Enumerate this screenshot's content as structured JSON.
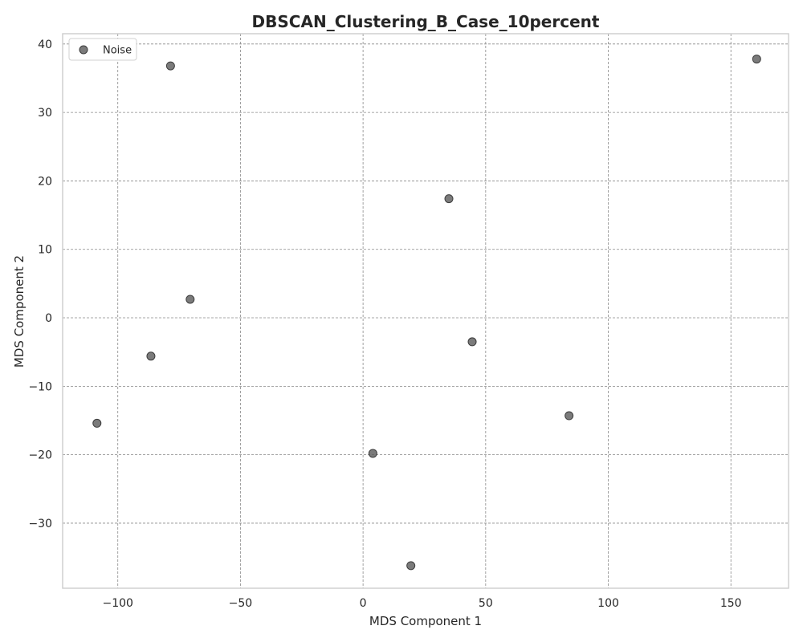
{
  "chart_data": {
    "type": "scatter",
    "title": "DBSCAN_Clustering_B_Case_10percent",
    "xlabel": "MDS Component 1",
    "ylabel": "MDS Component 2",
    "xlim": [
      -122.5,
      173.5
    ],
    "ylim": [
      -39.5,
      41.5
    ],
    "xticks": [
      -100,
      -50,
      0,
      50,
      100,
      150
    ],
    "yticks": [
      -30,
      -20,
      -10,
      0,
      10,
      20,
      30,
      40
    ],
    "xtick_labels": [
      "−100",
      "−50",
      "0",
      "50",
      "100",
      "150"
    ],
    "ytick_labels": [
      "−30",
      "−20",
      "−10",
      "0",
      "10",
      "20",
      "30",
      "40"
    ],
    "grid": true,
    "legend_position": "top-left",
    "series": [
      {
        "name": "Noise",
        "color": "#5a5a5a",
        "points": [
          {
            "x": -78.5,
            "y": 36.8
          },
          {
            "x": 160.5,
            "y": 37.8
          },
          {
            "x": 35.0,
            "y": 17.4
          },
          {
            "x": -70.5,
            "y": 2.7
          },
          {
            "x": -86.5,
            "y": -5.6
          },
          {
            "x": 44.5,
            "y": -3.5
          },
          {
            "x": -108.5,
            "y": -15.4
          },
          {
            "x": 84.0,
            "y": -14.3
          },
          {
            "x": 4.0,
            "y": -19.8
          },
          {
            "x": 19.5,
            "y": -36.2
          }
        ]
      }
    ]
  }
}
